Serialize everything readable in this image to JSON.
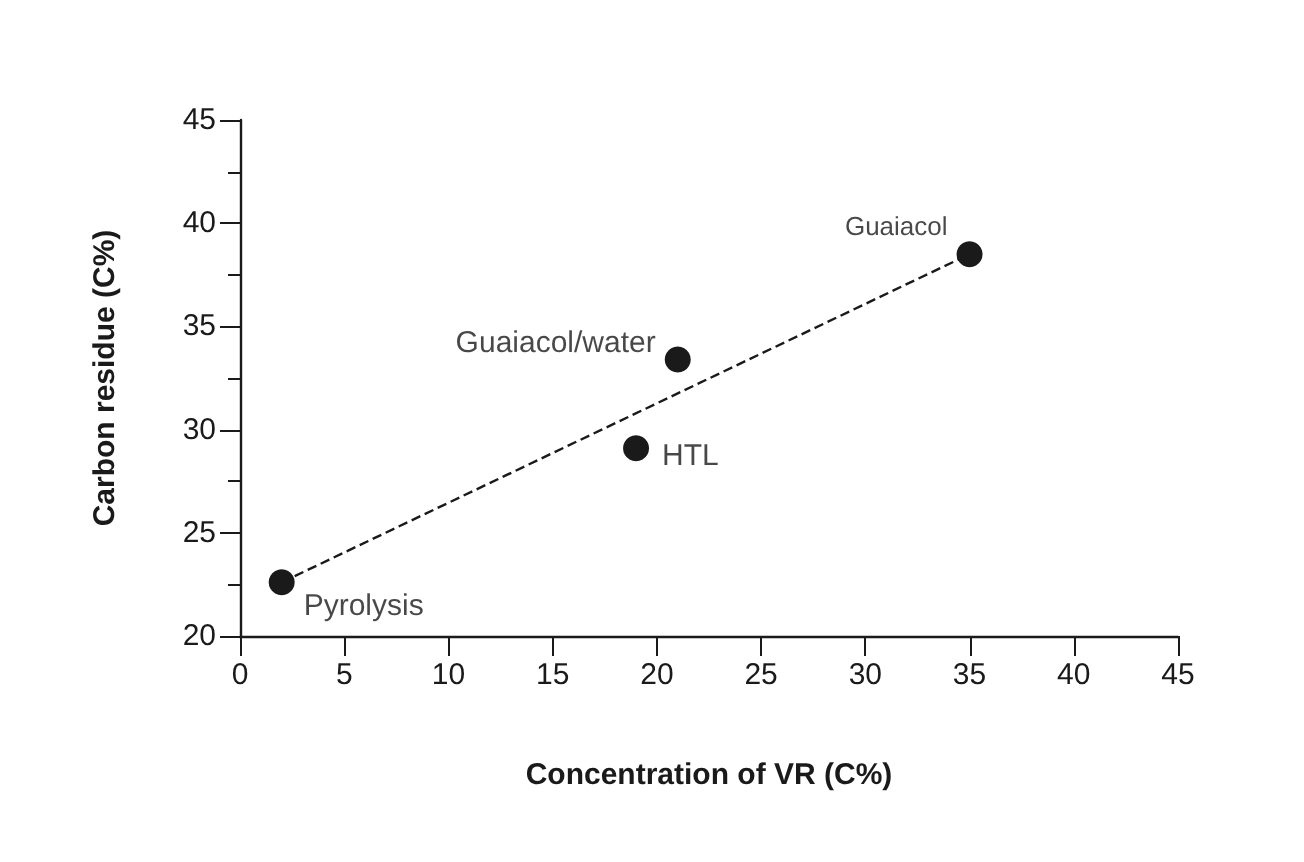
{
  "chart_data": {
    "type": "scatter",
    "xlabel": "Concentration of VR (C%)",
    "ylabel": "Carbon residue (C%)",
    "x": [
      2,
      19,
      21,
      35
    ],
    "values": [
      22.6,
      29.1,
      33.4,
      38.5
    ],
    "color": "#1a1a1a",
    "marker": "circle",
    "series": [
      {
        "type": "line",
        "x": [
          2,
          35
        ],
        "values": [
          22.6,
          38.5
        ],
        "color": "#1a1a1a",
        "line_style": "dashed",
        "marker": "none"
      }
    ],
    "annotations": [
      {
        "text": "Pyrolysis",
        "x": 2,
        "y": 22.6
      },
      {
        "text": "HTL",
        "x": 19,
        "y": 29.1
      },
      {
        "text": "Guaiacol/water",
        "x": 21,
        "y": 33.4
      },
      {
        "text": "Guaiacol",
        "x": 35,
        "y": 38.5
      }
    ],
    "xlim": [
      0,
      45
    ],
    "xticks": [
      0,
      5,
      10,
      15,
      20,
      25,
      30,
      35,
      40,
      45
    ],
    "ylim": [
      20,
      45
    ],
    "yticks": [
      20,
      25,
      30,
      35,
      40,
      45
    ],
    "grid": false
  }
}
